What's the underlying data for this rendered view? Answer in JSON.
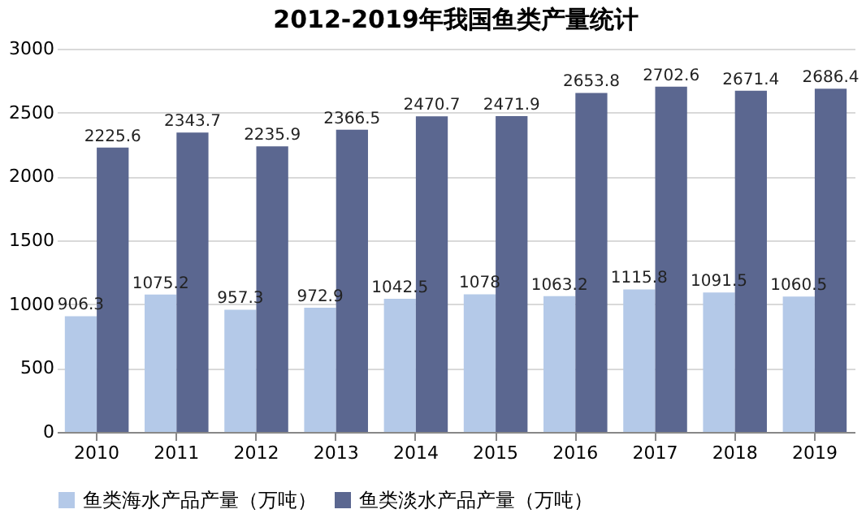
{
  "chart_data": {
    "type": "bar",
    "title": "2012-2019年我国鱼类产量统计",
    "categories": [
      "2010",
      "2011",
      "2012",
      "2013",
      "2014",
      "2015",
      "2016",
      "2017",
      "2018",
      "2019"
    ],
    "series": [
      {
        "name": "鱼类海水产品产量（万吨）",
        "color": "#b4c9e8",
        "values": [
          906.3,
          1075.2,
          957.3,
          972.9,
          1042.5,
          1078,
          1063.2,
          1115.8,
          1091.5,
          1060.5
        ]
      },
      {
        "name": "鱼类淡水产品产量（万吨）",
        "color": "#5b6790",
        "values": [
          2225.6,
          2343.7,
          2235.9,
          2366.5,
          2470.7,
          2471.9,
          2653.8,
          2702.6,
          2671.4,
          2686.4
        ]
      }
    ],
    "ylim": [
      0,
      3000
    ],
    "yticks": [
      0,
      500,
      1000,
      1500,
      2000,
      2500,
      3000
    ],
    "grid": "y",
    "legend": "bottom",
    "data_labels": true
  }
}
